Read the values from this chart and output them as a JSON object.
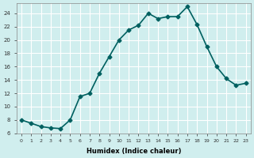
{
  "x": [
    0,
    1,
    2,
    3,
    4,
    5,
    6,
    7,
    8,
    9,
    10,
    11,
    12,
    13,
    14,
    15,
    16,
    17,
    18,
    19,
    20,
    21,
    22,
    23
  ],
  "y": [
    8.0,
    7.5,
    7.0,
    6.8,
    6.7,
    8.0,
    11.5,
    12.0,
    15.0,
    17.5,
    20.0,
    21.5,
    22.2,
    24.0,
    23.2,
    23.5,
    23.5,
    25.0,
    22.3,
    19.0,
    16.0,
    14.2,
    13.2,
    13.5
  ],
  "xlabel": "Humidex (Indice chaleur)",
  "line_color": "#006060",
  "marker_color": "#006060",
  "bg_color": "#d0eeee",
  "grid_color": "#ffffff",
  "xlim": [
    -0.5,
    23.5
  ],
  "ylim": [
    6,
    25.5
  ],
  "xticks": [
    0,
    1,
    2,
    3,
    4,
    5,
    6,
    7,
    8,
    9,
    10,
    11,
    12,
    13,
    14,
    15,
    16,
    17,
    18,
    19,
    20,
    21,
    22,
    23
  ],
  "yticks": [
    6,
    8,
    10,
    12,
    14,
    16,
    18,
    20,
    22,
    24
  ]
}
